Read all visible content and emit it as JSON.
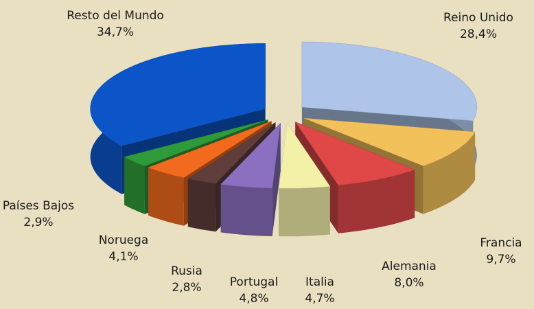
{
  "chart_data": {
    "type": "pie",
    "categories": [
      "Reino Unido",
      "Francia",
      "Alemania",
      "Italia",
      "Portugal",
      "Rusia",
      "Noruega",
      "Países Bajos",
      "Resto del Mundo"
    ],
    "values": [
      28.4,
      9.7,
      8.0,
      4.7,
      4.8,
      2.8,
      4.1,
      2.9,
      34.7
    ],
    "value_labels": [
      "28,4%",
      "9,7%",
      "8,0%",
      "4,7%",
      "4,8%",
      "2,8%",
      "4,1%",
      "2,9%",
      "34,7%"
    ],
    "colors": [
      "#aec4e8",
      "#f2c15a",
      "#e04848",
      "#f3f0a8",
      "#8b6fc0",
      "#5e3d3a",
      "#f26a1e",
      "#2f9a3a",
      "#0b55c8"
    ]
  }
}
